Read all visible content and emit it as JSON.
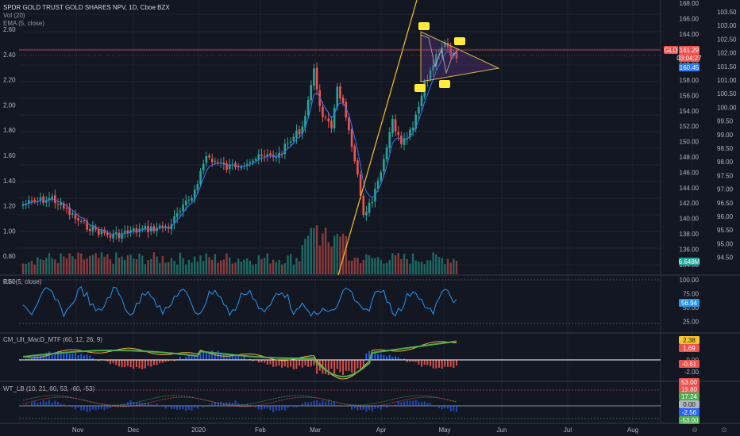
{
  "header": {
    "title": "SPDR GOLD TRUST GOLD SHARES NPV, 1D, Cboe BZX",
    "vol_label": "Vol (20)",
    "ema_label": "EMA (5, close)"
  },
  "colors": {
    "background": "#131722",
    "up": "#26a69a",
    "down": "#ef5350",
    "grid": "#1e222d",
    "trend_line": "#f7c325",
    "triangle": "#d4b14c",
    "marker": "#ffeb3b",
    "ema": "#3179f5",
    "rsi": "#2196f3",
    "wt_blue": "#2962ff",
    "wt_green": "#4caf50",
    "wt_red": "#ef5350"
  },
  "main_pane": {
    "left_axis": [
      "2.60",
      "2.40",
      "2.20",
      "2.00",
      "1.80",
      "1.60",
      "1.40",
      "1.20",
      "1.00",
      "0.80",
      "0.60"
    ],
    "mid_axis": [
      "168.00",
      "166.00",
      "164.00",
      "162.00",
      "160.00",
      "158.00",
      "156.00",
      "154.00",
      "152.00",
      "150.00",
      "148.00",
      "146.00",
      "144.00",
      "142.00",
      "140.00",
      "138.00",
      "136.00",
      "134.00"
    ],
    "right_axis": [
      "103.50",
      "103.00",
      "102.50",
      "102.00",
      "101.50",
      "101.00",
      "100.50",
      "100.00",
      "99.50",
      "99.00",
      "98.50",
      "98.00",
      "97.50",
      "97.00",
      "96.50",
      "96.00",
      "95.50",
      "95.00",
      "94.50"
    ],
    "symbol_tag": "GLD",
    "price_tag": "161.29",
    "countdown_tag": "03:04:27",
    "ema_tag": "160.45",
    "volume_tag": "6.648M"
  },
  "rsi_pane": {
    "label": "RSI (5, close)",
    "axis": [
      "100.00",
      "75.00",
      "50.00",
      "25.00"
    ],
    "value_tag": "56.94"
  },
  "macd_pane": {
    "label": "CM_Ult_MacD_MTF (60, 12, 26, 9)",
    "axis": [
      "0.00",
      "-2.00"
    ],
    "tags": [
      "2.38",
      "1.69",
      "-0.61"
    ]
  },
  "wt_pane": {
    "label": "WT_LB (10, 21, 60, 53, -60, -53)",
    "axis": [
      "0.00"
    ],
    "tags": [
      "53.00",
      "19.80",
      "17.24",
      "0.00",
      "-2.56",
      "-53.00"
    ]
  },
  "time_axis": [
    "Nov",
    "Dec",
    "2020",
    "Feb",
    "Mar",
    "Apr",
    "May",
    "Jun",
    "Jul",
    "Aug"
  ],
  "toolbar": {
    "zoom_left_glyph": "⊖",
    "zoom_right_glyph": "⊙"
  }
}
